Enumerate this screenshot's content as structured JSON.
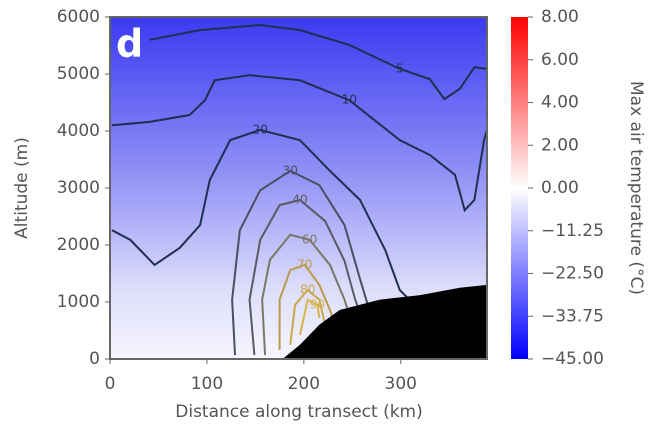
{
  "chart_data": {
    "type": "contour",
    "panel_label": "d",
    "x_label": "Distance along transect (km)",
    "y_label": "Altitude (m)",
    "xlim": [
      0,
      389
    ],
    "ylim": [
      0,
      6000
    ],
    "xticks": [
      0,
      100,
      200,
      300
    ],
    "yticks": [
      0,
      1000,
      2000,
      3000,
      4000,
      5000,
      6000
    ],
    "contours": [
      {
        "level": 5,
        "color": "#1e2f50",
        "x": [
          41,
          93,
          155,
          196,
          247,
          299,
          330,
          345,
          361,
          376,
          389
        ],
        "y": [
          5600,
          5770,
          5860,
          5770,
          5510,
          5090,
          4910,
          4560,
          4740,
          5120,
          5090
        ]
      },
      {
        "level": 10,
        "color": "#1e2f50",
        "x": [
          2,
          41,
          82,
          98,
          108,
          144,
          196,
          247,
          299,
          330,
          356,
          366,
          376,
          386,
          389
        ],
        "y": [
          4100,
          4160,
          4280,
          4540,
          4890,
          4980,
          4890,
          4540,
          3840,
          3580,
          3230,
          2610,
          2790,
          3840,
          4020
        ]
      },
      {
        "level": 20,
        "color": "#1e2f50",
        "x": [
          2,
          21,
          46,
          72,
          93,
          103,
          124,
          155,
          196,
          227,
          258,
          284,
          299,
          309
        ],
        "y": [
          2260,
          2090,
          1650,
          1950,
          2350,
          3140,
          3840,
          4020,
          3840,
          3300,
          2790,
          1910,
          1210,
          1040
        ]
      },
      {
        "level": 30,
        "color": "#4a5060",
        "x": [
          129,
          126,
          134,
          155,
          186,
          216,
          242,
          258,
          266
        ],
        "y": [
          70,
          1040,
          2260,
          2960,
          3300,
          3050,
          2350,
          1400,
          950
        ]
      },
      {
        "level": 40,
        "color": "#5a5a62",
        "x": [
          149,
          144,
          155,
          175,
          196,
          222,
          242,
          253,
          258
        ],
        "y": [
          70,
          1040,
          2090,
          2700,
          2790,
          2420,
          1720,
          1040,
          820
        ]
      },
      {
        "level": 60,
        "color": "#7a7866",
        "x": [
          160,
          157,
          165,
          186,
          206,
          227,
          242,
          247
        ],
        "y": [
          70,
          1040,
          1740,
          2180,
          2090,
          1650,
          1040,
          770
        ]
      },
      {
        "level": 70,
        "color": "#b89c4c",
        "x": [
          175,
          175,
          186,
          201,
          216,
          227,
          232
        ],
        "y": [
          160,
          1040,
          1560,
          1650,
          1300,
          860,
          600
        ]
      },
      {
        "level": 80,
        "color": "#c9a84a",
        "x": [
          186,
          191,
          204,
          216,
          222
        ],
        "y": [
          250,
          950,
          1210,
          1040,
          600
        ]
      },
      {
        "level": 90,
        "color": "#d6b44a",
        "x": [
          196,
          204,
          214,
          216
        ],
        "y": [
          420,
          1040,
          950,
          720
        ]
      }
    ],
    "terrain": {
      "color": "#000000",
      "x": [
        178,
        196,
        216,
        237,
        278,
        320,
        361,
        389
      ],
      "y": [
        0,
        250,
        600,
        860,
        1040,
        1120,
        1250,
        1300
      ]
    },
    "colorbar": {
      "label": "Max air temperature (°C)",
      "vmin": -45,
      "vcenter": 0,
      "vmax": 8,
      "colors": [
        "#0000ff",
        "#ffffff",
        "#ff0000"
      ],
      "ticks": [
        {
          "value": 8,
          "label": "8.00"
        },
        {
          "value": 6,
          "label": "6.00"
        },
        {
          "value": 4,
          "label": "4.00"
        },
        {
          "value": 2,
          "label": "2.00"
        },
        {
          "value": 0,
          "label": "0.00"
        },
        {
          "value": -11.25,
          "label": "−11.25"
        },
        {
          "value": -22.5,
          "label": "−22.50"
        },
        {
          "value": -33.75,
          "label": "−33.75"
        },
        {
          "value": -45,
          "label": "−45.00"
        }
      ]
    }
  }
}
